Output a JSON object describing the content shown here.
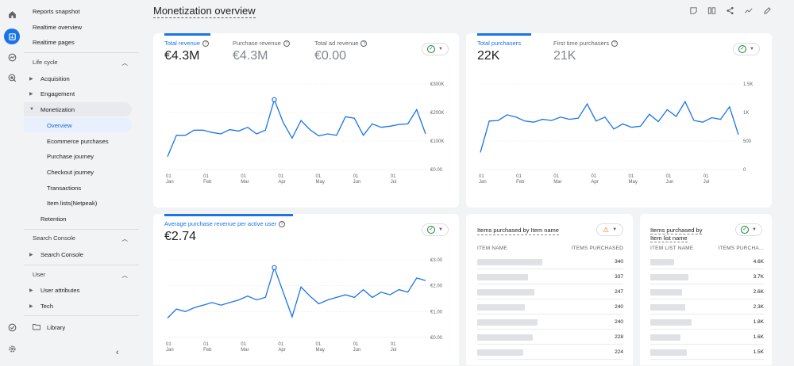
{
  "nav": {
    "items": {
      "reports_snapshot": "Reports snapshot",
      "realtime_overview": "Realtime overview",
      "realtime_pages": "Realtime pages",
      "life_cycle": "Life cycle",
      "acquisition": "Acquisition",
      "engagement": "Engagement",
      "monetization": "Monetization",
      "overview": "Overview",
      "ecommerce": "Ecommerce purchases",
      "purchase_journey": "Purchase journey",
      "checkout_journey": "Checkout journey",
      "transactions": "Transactions",
      "item_lists": "Item lists(Netpeak)",
      "retention": "Retention",
      "search_console_section": "Search Console",
      "search_console": "Search Console",
      "user_section": "User",
      "user_attributes": "User attributes",
      "tech": "Tech",
      "library": "Library"
    }
  },
  "page": {
    "title": "Monetization overview"
  },
  "revenue_card": {
    "tabs": [
      {
        "label": "Total revenue",
        "value": "€4.3M"
      },
      {
        "label": "Purchase revenue",
        "value": "€4.3M"
      },
      {
        "label": "Total ad revenue",
        "value": "€0.00"
      }
    ]
  },
  "purchasers_card": {
    "tabs": [
      {
        "label": "Total purchasers",
        "value": "22K"
      },
      {
        "label": "First time purchasers",
        "value": "21K"
      }
    ]
  },
  "arpu_card": {
    "tabs": [
      {
        "label": "Average purchase revenue per active user",
        "value": "€2.74"
      }
    ]
  },
  "items_card": {
    "title": "Items purchased by Item name",
    "col1": "ITEM NAME",
    "col2": "ITEMS PURCHASED",
    "values": [
      "340",
      "337",
      "247",
      "240",
      "240",
      "228",
      "224"
    ]
  },
  "lists_card": {
    "title_line1": "Items purchased by",
    "title_line2": "Item list name",
    "col1": "ITEM LIST NAME",
    "col2": "ITEMS PURCHA...",
    "values": [
      "4.6K",
      "3.7K",
      "2.6K",
      "2.3K",
      "1.8K",
      "1.6K",
      "1.5K"
    ]
  },
  "chart_data": [
    {
      "type": "line",
      "title": "Total revenue",
      "x_ticks": [
        "01 Jan",
        "01 Feb",
        "01 Mar",
        "01 Apr",
        "01 May",
        "01 Jun",
        "01 Jul"
      ],
      "y_ticks": [
        "€0.00",
        "€100K",
        "€200K",
        "€300K"
      ],
      "ylim": [
        0,
        300000
      ],
      "values": [
        45000,
        120000,
        120000,
        138000,
        138000,
        130000,
        125000,
        140000,
        135000,
        148000,
        125000,
        138000,
        245000,
        165000,
        110000,
        172000,
        140000,
        118000,
        125000,
        120000,
        185000,
        180000,
        120000,
        160000,
        148000,
        152000,
        158000,
        160000,
        210000,
        125000
      ]
    },
    {
      "type": "line",
      "title": "Total purchasers",
      "x_ticks": [
        "01 Jan",
        "01 Feb",
        "01 Mar",
        "01 Apr",
        "01 May",
        "01 Jun",
        "01 Jul"
      ],
      "y_ticks": [
        "0",
        "500",
        "1K",
        "1.5K"
      ],
      "ylim": [
        0,
        1500
      ],
      "values": [
        300,
        850,
        860,
        960,
        920,
        850,
        830,
        880,
        860,
        920,
        880,
        900,
        1150,
        850,
        920,
        710,
        800,
        740,
        760,
        970,
        840,
        1050,
        930,
        1190,
        860,
        830,
        910,
        880,
        1100,
        610
      ]
    },
    {
      "type": "line",
      "title": "Average purchase revenue per active user",
      "x_ticks": [
        "01 Jan",
        "01 Feb",
        "01 Mar",
        "01 Apr",
        "01 May",
        "01 Jun",
        "01 Jul"
      ],
      "y_ticks": [
        "€0.00",
        "€1.00",
        "€2.00",
        "€3.00"
      ],
      "ylim": [
        0,
        3
      ],
      "values": [
        0.75,
        1.1,
        1.0,
        1.15,
        1.25,
        1.35,
        1.25,
        1.35,
        1.45,
        1.6,
        1.45,
        1.55,
        2.7,
        1.75,
        0.8,
        1.95,
        1.6,
        1.3,
        1.45,
        1.55,
        1.65,
        1.55,
        1.85,
        1.55,
        1.75,
        1.65,
        1.85,
        1.75,
        2.3,
        2.2
      ]
    }
  ]
}
